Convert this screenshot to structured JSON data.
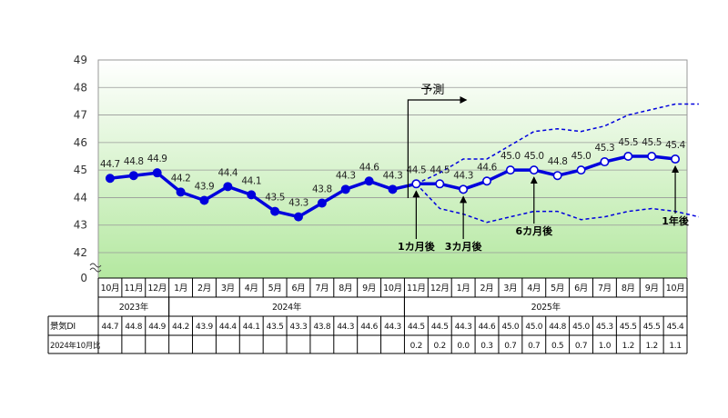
{
  "chart_data": {
    "type": "line",
    "ylim": [
      42,
      49
    ],
    "y_ticks": [
      "42",
      "43",
      "44",
      "45",
      "46",
      "47",
      "48",
      "49"
    ],
    "y_zero_label": "0",
    "months": [
      "10月",
      "11月",
      "12月",
      "1月",
      "2月",
      "3月",
      "4月",
      "5月",
      "6月",
      "7月",
      "8月",
      "9月",
      "10月",
      "11月",
      "12月",
      "1月",
      "2月",
      "3月",
      "4月",
      "5月",
      "6月",
      "7月",
      "8月",
      "9月",
      "10月"
    ],
    "years": [
      {
        "label": "2023年",
        "start": 0,
        "end": 2
      },
      {
        "label": "2024年",
        "start": 3,
        "end": 12
      },
      {
        "label": "2025年",
        "start": 13,
        "end": 24
      }
    ],
    "series": [
      {
        "values": [
          44.7,
          44.8,
          44.9,
          44.2,
          43.9,
          44.4,
          44.1,
          43.5,
          43.3,
          43.8,
          44.3,
          44.6,
          44.3,
          44.5,
          44.5,
          44.3,
          44.6,
          45.0,
          45.0,
          44.8,
          45.0,
          45.3,
          45.5,
          45.5,
          45.4
        ]
      }
    ],
    "forecast_start_index": 13,
    "upper_band": [
      44.5,
      44.9,
      45.4,
      45.4,
      45.9,
      46.4,
      46.5,
      46.4,
      46.6,
      47.0,
      47.2,
      47.4,
      47.4
    ],
    "lower_band": [
      44.5,
      43.6,
      43.4,
      43.1,
      43.3,
      43.5,
      43.5,
      43.2,
      43.3,
      43.5,
      43.6,
      43.5,
      43.3
    ],
    "data_labels": [
      "44.7",
      "44.8",
      "44.9",
      "44.2",
      "43.9",
      "44.4",
      "44.1",
      "43.5",
      "43.3",
      "43.8",
      "44.3",
      "44.6",
      "44.3",
      "44.5",
      "44.5",
      "44.3",
      "44.6",
      "45.0",
      "45.0",
      "44.8",
      "45.0",
      "45.3",
      "45.5",
      "45.5",
      "45.4"
    ],
    "annotations": [
      {
        "text": "予測",
        "index": 13
      },
      {
        "text": "1カ月後",
        "index": 13
      },
      {
        "text": "3カ月後",
        "index": 15
      },
      {
        "text": "6カ月後",
        "index": 18
      },
      {
        "text": "1年後",
        "index": 24
      }
    ],
    "table": {
      "row1_label": "景気DI",
      "row1": [
        "44.7",
        "44.8",
        "44.9",
        "44.2",
        "43.9",
        "44.4",
        "44.1",
        "43.5",
        "43.3",
        "43.8",
        "44.3",
        "44.6",
        "44.3",
        "44.5",
        "44.5",
        "44.3",
        "44.6",
        "45.0",
        "45.0",
        "44.8",
        "45.0",
        "45.3",
        "45.5",
        "45.5",
        "45.4"
      ],
      "row2_label": "2024年10月比",
      "row2": [
        "",
        "",
        "",
        "",
        "",
        "",
        "",
        "",
        "",
        "",
        "",
        "",
        "",
        "0.2",
        "0.2",
        "0.0",
        "0.3",
        "0.7",
        "0.7",
        "0.5",
        "0.7",
        "1.0",
        "1.2",
        "1.2",
        "1.1"
      ]
    },
    "colors": {
      "line": "#0000dd",
      "band": "#0000dd",
      "bg_top": "#ffffff",
      "bg_bottom": "#b4e8a0"
    }
  }
}
